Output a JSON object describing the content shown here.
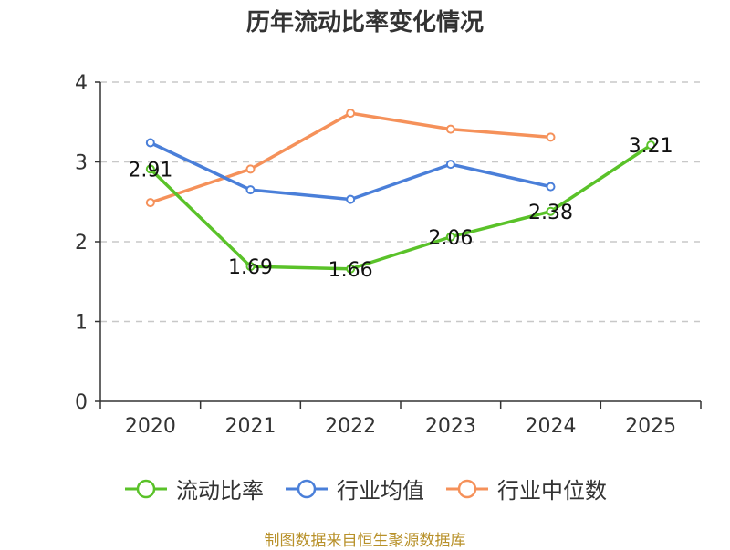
{
  "chart_data": {
    "type": "line",
    "title": "历年流动比率变化情况",
    "categories": [
      "2020",
      "2021",
      "2022",
      "2023",
      "2024",
      "2025"
    ],
    "ylim": [
      0,
      4
    ],
    "yticks": [
      "0",
      "1",
      "2",
      "3",
      "4"
    ],
    "grid": true,
    "legend_position": "bottom",
    "series": [
      {
        "name": "流动比率",
        "color": "#5ac229",
        "values": [
          2.91,
          1.69,
          1.66,
          2.06,
          2.38,
          3.21
        ],
        "labels": [
          "2.91",
          "1.69",
          "1.66",
          "2.06",
          "2.38",
          "3.21"
        ]
      },
      {
        "name": "行业均值",
        "color": "#4a7fd9",
        "values": [
          3.24,
          2.65,
          2.53,
          2.97,
          2.69,
          null
        ]
      },
      {
        "name": "行业中位数",
        "color": "#f5915a",
        "values": [
          2.49,
          2.91,
          3.61,
          3.41,
          3.31,
          null
        ]
      }
    ]
  },
  "source": "制图数据来自恒生聚源数据库"
}
